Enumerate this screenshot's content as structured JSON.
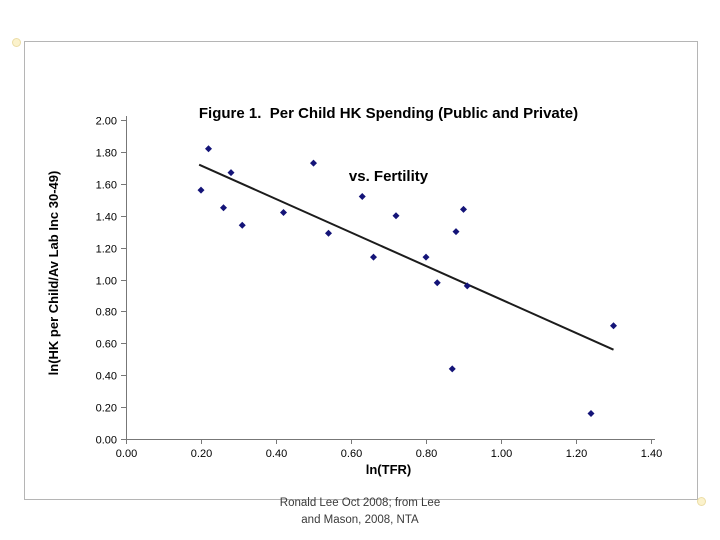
{
  "chart_data": {
    "type": "scatter",
    "title": "Figure 1.  Per Child HK Spending (Public and Private) vs. Fertility",
    "title_line1": "Figure 1.  Per Child HK Spending (Public and Private)",
    "title_line2": "vs. Fertility",
    "xlabel": "ln(TFR)",
    "ylabel": "ln(HK per Child/Av Lab Inc 30-49)",
    "xlim": [
      0.0,
      1.4
    ],
    "ylim": [
      0.0,
      2.0
    ],
    "x_tick_labels": [
      "0.00",
      "0.20",
      "0.40",
      "0.60",
      "0.80",
      "1.00",
      "1.20",
      "1.40"
    ],
    "y_tick_labels": [
      "0.00",
      "0.20",
      "0.40",
      "0.60",
      "0.80",
      "1.00",
      "1.20",
      "1.40",
      "1.60",
      "1.80",
      "2.00"
    ],
    "grid": false,
    "legend": false,
    "marker": "diamond",
    "marker_color": "#141478",
    "axis_color": "#777777",
    "points": [
      [
        0.2,
        1.56
      ],
      [
        0.22,
        1.82
      ],
      [
        0.26,
        1.45
      ],
      [
        0.28,
        1.67
      ],
      [
        0.31,
        1.34
      ],
      [
        0.42,
        1.42
      ],
      [
        0.5,
        1.73
      ],
      [
        0.54,
        1.29
      ],
      [
        0.63,
        1.52
      ],
      [
        0.66,
        1.14
      ],
      [
        0.72,
        1.4
      ],
      [
        0.8,
        1.14
      ],
      [
        0.83,
        0.98
      ],
      [
        0.87,
        0.44
      ],
      [
        0.88,
        1.3
      ],
      [
        0.9,
        1.44
      ],
      [
        0.91,
        0.96
      ],
      [
        1.24,
        0.16
      ],
      [
        1.3,
        0.71
      ]
    ],
    "trendline": {
      "x1": 0.195,
      "y1": 1.72,
      "x2": 1.3,
      "y2": 0.56,
      "color": "#1c1c1c"
    }
  },
  "caption": {
    "line1": "Ronald Lee Oct 2008; from Lee",
    "line2": "and Mason, 2008, NTA"
  }
}
